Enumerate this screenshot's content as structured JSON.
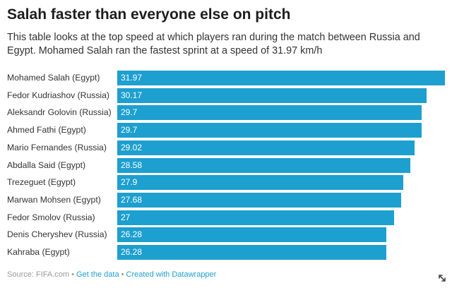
{
  "header": {
    "title": "Salah faster than everyone else on pitch",
    "subtitle": "This table looks at the top speed at which players ran during the match between Russia and Egypt. Mohamed Salah ran the fastest sprint at a speed of 31.97 km/h"
  },
  "chart_data": {
    "type": "bar",
    "orientation": "horizontal",
    "title": "Salah faster than everyone else on pitch",
    "xlabel": "",
    "ylabel": "",
    "grid": false,
    "legend": "none",
    "bar_color": "#1d9fcf",
    "categories": [
      "Mohamed Salah (Egypt)",
      "Fedor Kudriashov (Russia)",
      "Aleksandr Golovin (Russia)",
      "Ahmed Fathi (Egypt)",
      "Mario Fernandes (Russia)",
      "Abdalla Said (Egypt)",
      "Trezeguet (Egypt)",
      "Marwan Mohsen (Egypt)",
      "Fedor Smolov (Russia)",
      "Denis Cheryshev (Russia)",
      "Kahraba (Egypt)"
    ],
    "values": [
      31.97,
      30.17,
      29.7,
      29.7,
      29.02,
      28.58,
      27.9,
      27.68,
      27,
      26.28,
      26.28
    ],
    "value_labels": [
      "31.97",
      "30.17",
      "29.7",
      "29.7",
      "29.02",
      "28.58",
      "27.9",
      "27.68",
      "27",
      "26.28",
      "26.28"
    ],
    "xlim": [
      0,
      31.97
    ]
  },
  "footer": {
    "source": "Source: FIFA.com",
    "separator": "•",
    "get_data": "Get the data",
    "created_with": "Created with Datawrapper"
  },
  "icons": {
    "resize": "resize-icon"
  }
}
